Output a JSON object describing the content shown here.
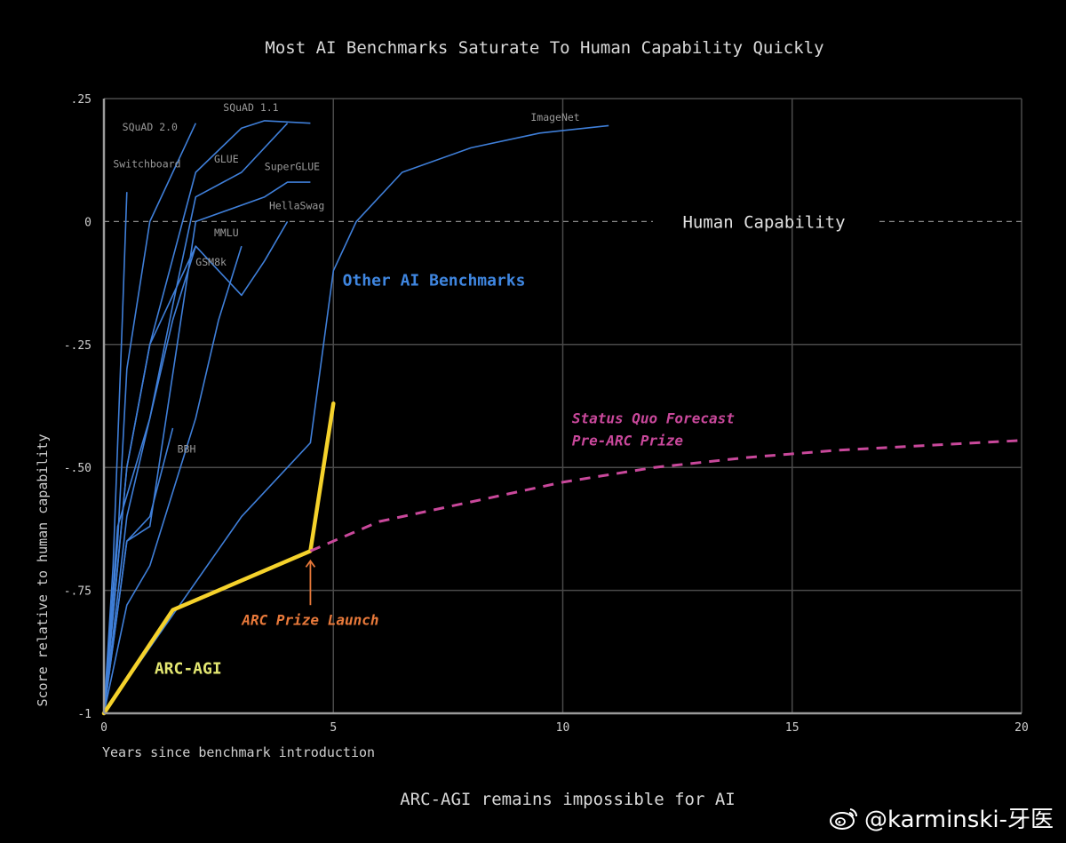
{
  "chart_data": {
    "type": "line",
    "title": "Most AI Benchmarks Saturate To Human Capability Quickly",
    "subtitle": "ARC-AGI remains impossible for AI",
    "xlabel": "Years since benchmark introduction",
    "ylabel": "Score relative to human capability",
    "xlim": [
      0,
      20
    ],
    "ylim": [
      -1,
      0.25
    ],
    "xticks": [
      0,
      5,
      10,
      15,
      20
    ],
    "xtick_labels": [
      "0",
      "5",
      "10",
      "15",
      "20"
    ],
    "yticks": [
      0.25,
      0,
      -0.25,
      -0.5,
      -0.75,
      -1
    ],
    "ytick_labels": [
      ".25",
      "0",
      "-.25",
      "-.50",
      "-.75",
      "-1"
    ],
    "grid": true,
    "human_line": {
      "y": 0,
      "label": "Human Capability"
    },
    "colors": {
      "benchmarks": "#3f7fd9",
      "arc": "#f5d22b",
      "forecast": "#c9489b",
      "launch": "#e8793a",
      "benchmark_group": "#3f86e0",
      "arc_label": "#e4e872"
    },
    "series": [
      {
        "name": "Switchboard",
        "x": [
          0,
          0.2,
          0.4,
          0.5
        ],
        "y": [
          -1,
          -0.7,
          -0.2,
          0.06
        ]
      },
      {
        "name": "SQuAD 2.0",
        "x": [
          0,
          0.3,
          0.5,
          1.0,
          2.0
        ],
        "y": [
          -1,
          -0.65,
          -0.3,
          0.0,
          0.2
        ]
      },
      {
        "name": "SQuAD 1.1",
        "x": [
          0,
          0.5,
          1.0,
          2.0,
          3.0,
          3.5,
          4.5
        ],
        "y": [
          -1,
          -0.5,
          -0.25,
          0.1,
          0.19,
          0.205,
          0.2
        ]
      },
      {
        "name": "GLUE",
        "x": [
          0,
          0.5,
          1.0,
          1.5,
          2.0,
          3.0,
          4.0
        ],
        "y": [
          -1,
          -0.6,
          -0.4,
          -0.17,
          0.05,
          0.1,
          0.2
        ]
      },
      {
        "name": "SuperGLUE",
        "x": [
          0,
          0.5,
          1.0,
          2.0,
          3.5,
          4.0,
          4.5
        ],
        "y": [
          -1,
          -0.65,
          -0.62,
          0.0,
          0.05,
          0.08,
          0.08
        ]
      },
      {
        "name": "HellaSwag",
        "x": [
          0,
          0.5,
          1.0,
          2.0,
          3.0,
          3.5,
          4.0
        ],
        "y": [
          -1,
          -0.5,
          -0.25,
          -0.05,
          -0.15,
          -0.08,
          0.0
        ]
      },
      {
        "name": "MMLU",
        "x": [
          0,
          0.5,
          1.0,
          2.0,
          2.5,
          3.0
        ],
        "y": [
          -1,
          -0.78,
          -0.7,
          -0.4,
          -0.2,
          -0.05
        ]
      },
      {
        "name": "GSM8k",
        "x": [
          0,
          0.3,
          1.0,
          1.5,
          2.0
        ],
        "y": [
          -1,
          -0.62,
          -0.4,
          -0.2,
          -0.05
        ]
      },
      {
        "name": "BBH",
        "x": [
          0,
          0.5,
          1.0,
          1.5
        ],
        "y": [
          -1,
          -0.65,
          -0.6,
          -0.42
        ]
      },
      {
        "name": "ImageNet",
        "x": [
          0,
          1.5,
          3.0,
          4.5,
          5.0,
          5.5,
          6.5,
          8.0,
          9.5,
          11.0
        ],
        "y": [
          -1,
          -0.8,
          -0.6,
          -0.45,
          -0.1,
          0.0,
          0.1,
          0.15,
          0.18,
          0.195
        ]
      },
      {
        "name": "ARC-AGI",
        "x": [
          0,
          1.5,
          4.5,
          5.0
        ],
        "y": [
          -1,
          -0.79,
          -0.67,
          -0.37
        ]
      },
      {
        "name": "Status Quo Forecast Pre-ARC Prize",
        "x": [
          4.5,
          6,
          8,
          10,
          12,
          14,
          16,
          18,
          20
        ],
        "y": [
          -0.67,
          -0.61,
          -0.57,
          -0.53,
          -0.5,
          -0.48,
          -0.465,
          -0.455,
          -0.445
        ]
      }
    ],
    "benchmark_labels": [
      {
        "text": "Switchboard",
        "x": 0.2,
        "y": 0.11
      },
      {
        "text": "SQuAD 2.0",
        "x": 0.4,
        "y": 0.185
      },
      {
        "text": "SQuAD 1.1",
        "x": 2.6,
        "y": 0.225
      },
      {
        "text": "GLUE",
        "x": 2.4,
        "y": 0.12
      },
      {
        "text": "SuperGLUE",
        "x": 3.5,
        "y": 0.105
      },
      {
        "text": "HellaSwag",
        "x": 3.6,
        "y": 0.025
      },
      {
        "text": "MMLU",
        "x": 2.4,
        "y": -0.03
      },
      {
        "text": "GSM8k",
        "x": 2.0,
        "y": -0.09
      },
      {
        "text": "BBH",
        "x": 1.6,
        "y": -0.47
      },
      {
        "text": "ImageNet",
        "x": 9.3,
        "y": 0.205
      }
    ],
    "annotations": {
      "other_benchmarks": {
        "text": "Other AI Benchmarks",
        "x": 5.2,
        "y": -0.13
      },
      "arc_agi": {
        "text": "ARC-AGI",
        "x": 1.1,
        "y": -0.92
      },
      "launch": {
        "text": "ARC Prize Launch",
        "x": 4.5,
        "y": -0.82,
        "arrow_from": -0.78,
        "arrow_to": -0.69
      },
      "forecast_line1": {
        "text": "Status Quo Forecast",
        "x": 10.2,
        "y": -0.41
      },
      "forecast_line2": {
        "text": "Pre-ARC Prize",
        "x": 10.2,
        "y": -0.455
      }
    }
  },
  "watermark": "@karminski-牙医"
}
